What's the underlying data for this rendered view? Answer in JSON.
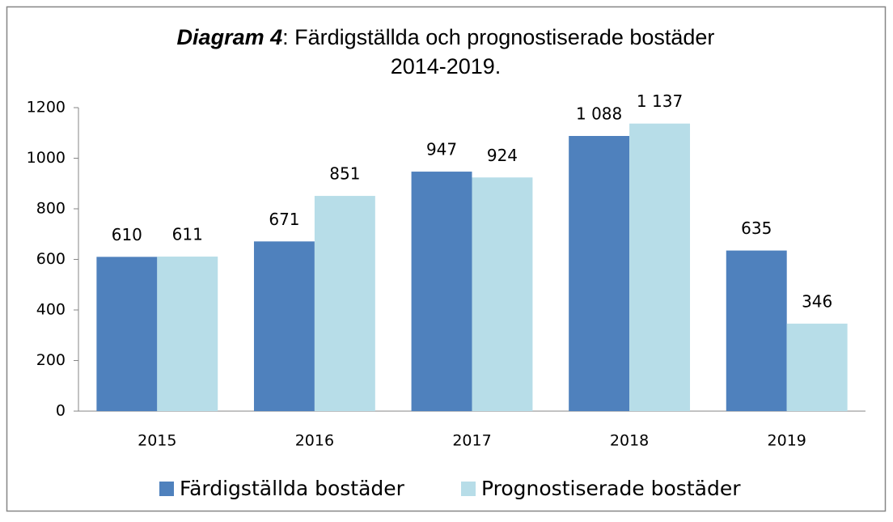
{
  "chart_data": {
    "type": "bar",
    "title": [
      "Diagram 4",
      ": Färdigställda och prognostiserade bostäder",
      "2014-2019."
    ],
    "categories": [
      "2015",
      "2016",
      "2017",
      "2018",
      "2019"
    ],
    "series": [
      {
        "name": "Färdigställda bostäder",
        "color": "#4f81bd",
        "values": [
          610,
          671,
          947,
          1088,
          635
        ],
        "value_labels": [
          "610",
          "671",
          "947",
          "1 088",
          "635"
        ]
      },
      {
        "name": "Prognostiserade bostäder",
        "color": "#b7dde8",
        "values": [
          611,
          851,
          924,
          1137,
          346
        ],
        "value_labels": [
          "611",
          "851",
          "924",
          "1 137",
          "346"
        ]
      }
    ],
    "ylim": [
      0,
      1200
    ],
    "yticks": [
      0,
      200,
      400,
      600,
      800,
      1000,
      1200
    ],
    "grid": false,
    "legend": "bottom"
  }
}
